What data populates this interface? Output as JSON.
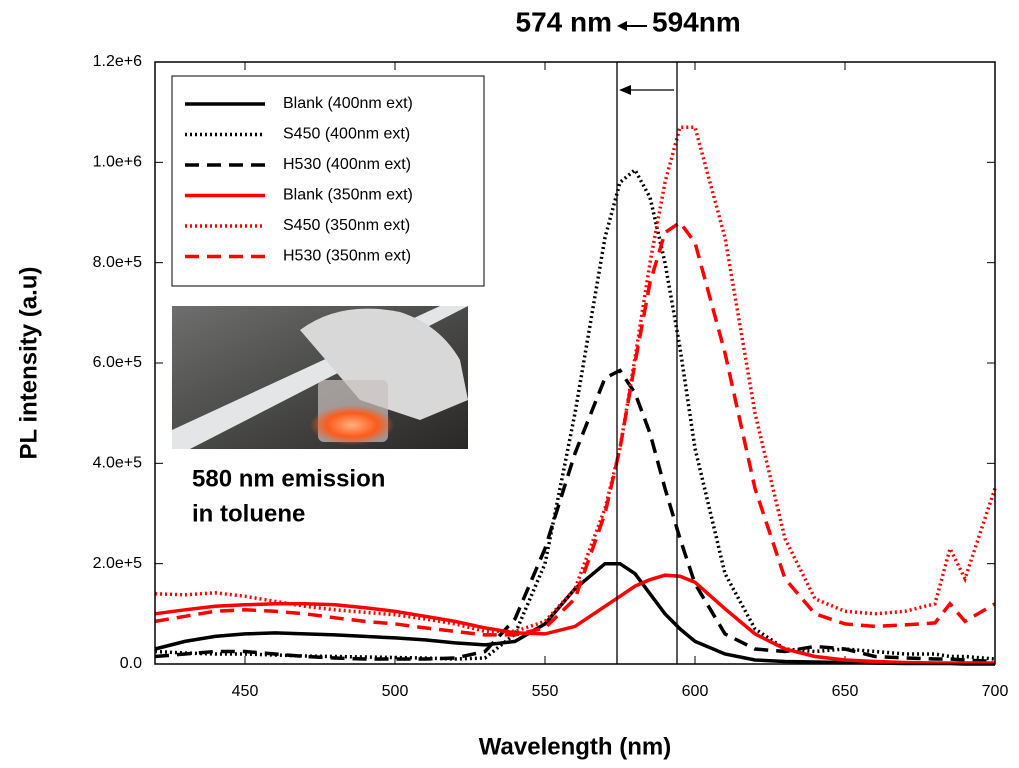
{
  "chart_data": {
    "type": "line",
    "title_left": "574 nm",
    "title_right": "594nm",
    "x_label": "Wavelength (nm)",
    "y_label": "PL intensity (a.u)",
    "annotation_lines": [
      "580 nm emission",
      "in toluene"
    ],
    "markers": [
      574,
      594
    ],
    "xlim": [
      420,
      700
    ],
    "xticks": [
      450,
      500,
      550,
      600,
      650,
      700
    ],
    "ylim": [
      0,
      1200000
    ],
    "yticks": [
      {
        "value": 0,
        "label": "0.0"
      },
      {
        "value": 200000,
        "label": "2.0e+5"
      },
      {
        "value": 400000,
        "label": "4.0e+5"
      },
      {
        "value": 600000,
        "label": "6.0e+5"
      },
      {
        "value": 800000,
        "label": "8.0e+5"
      },
      {
        "value": 1000000,
        "label": "1.0e+6"
      },
      {
        "value": 1200000,
        "label": "1.2e+6"
      }
    ],
    "legend": "upper left",
    "x": [
      420,
      430,
      440,
      450,
      460,
      470,
      480,
      490,
      500,
      510,
      520,
      530,
      540,
      550,
      560,
      570,
      575,
      580,
      585,
      590,
      595,
      600,
      610,
      620,
      630,
      640,
      650,
      660,
      670,
      680,
      685,
      690,
      700
    ],
    "series": [
      {
        "name": "Blank (400nm ext)",
        "color": "#000000",
        "style": "solid",
        "values": [
          30000,
          45000,
          55000,
          60000,
          62000,
          60000,
          58000,
          55000,
          52000,
          48000,
          42000,
          38000,
          45000,
          80000,
          150000,
          200000,
          200000,
          180000,
          140000,
          100000,
          70000,
          45000,
          20000,
          8000,
          5000,
          4000,
          3000,
          2000,
          1000,
          1000,
          1000,
          0,
          0
        ]
      },
      {
        "name": "S450 (400nm ext)",
        "color": "#000000",
        "style": "dotted",
        "values": [
          25000,
          22000,
          20000,
          20000,
          18000,
          16000,
          15000,
          14000,
          13000,
          12000,
          10000,
          12000,
          60000,
          200000,
          500000,
          850000,
          960000,
          985000,
          930000,
          800000,
          630000,
          430000,
          180000,
          70000,
          30000,
          25000,
          30000,
          25000,
          20000,
          20000,
          15000,
          15000,
          10000
        ]
      },
      {
        "name": "H530 (400nm ext)",
        "color": "#000000",
        "style": "dashed",
        "values": [
          15000,
          20000,
          25000,
          25000,
          20000,
          15000,
          12000,
          10000,
          10000,
          10000,
          12000,
          25000,
          90000,
          230000,
          420000,
          570000,
          585000,
          540000,
          460000,
          350000,
          250000,
          160000,
          60000,
          30000,
          25000,
          35000,
          30000,
          15000,
          12000,
          10000,
          10000,
          8000,
          5000
        ]
      },
      {
        "name": "Blank (350nm ext)",
        "color": "#ff0000",
        "style": "solid",
        "values": [
          100000,
          108000,
          115000,
          118000,
          120000,
          120000,
          118000,
          112000,
          105000,
          95000,
          85000,
          72000,
          62000,
          60000,
          75000,
          115000,
          135000,
          155000,
          168000,
          177000,
          175000,
          163000,
          110000,
          60000,
          30000,
          15000,
          8000,
          5000,
          3000,
          2000,
          2000,
          2000,
          2000
        ]
      },
      {
        "name": "S450 (350nm ext)",
        "color": "#ff0000",
        "style": "dotted",
        "values": [
          140000,
          138000,
          142000,
          135000,
          125000,
          115000,
          108000,
          103000,
          98000,
          90000,
          80000,
          65000,
          65000,
          85000,
          150000,
          310000,
          430000,
          610000,
          800000,
          960000,
          1070000,
          1070000,
          850000,
          500000,
          250000,
          130000,
          105000,
          100000,
          105000,
          120000,
          230000,
          170000,
          350000
        ]
      },
      {
        "name": "H530 (350nm ext)",
        "color": "#ff0000",
        "style": "dashed",
        "values": [
          85000,
          95000,
          105000,
          108000,
          105000,
          100000,
          92000,
          85000,
          80000,
          72000,
          65000,
          58000,
          58000,
          72000,
          130000,
          300000,
          430000,
          600000,
          760000,
          860000,
          880000,
          840000,
          620000,
          350000,
          170000,
          100000,
          80000,
          75000,
          78000,
          82000,
          120000,
          85000,
          120000
        ]
      }
    ]
  }
}
